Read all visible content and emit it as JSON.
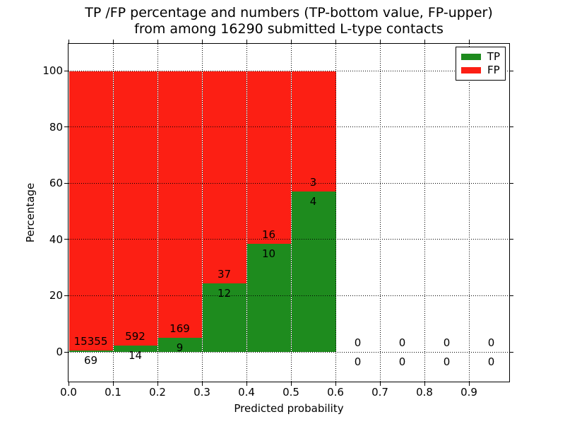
{
  "title": {
    "line1": "TP /FP percentage and numbers (TP-bottom value, FP-upper)",
    "line2": "from among 16290 submitted L-type contacts"
  },
  "axes": {
    "xlabel": "Predicted probability",
    "ylabel": "Percentage",
    "xtick_labels": [
      "0.0",
      "0.1",
      "0.2",
      "0.3",
      "0.4",
      "0.5",
      "0.6",
      "0.7",
      "0.8",
      "0.9"
    ],
    "ytick_labels": [
      "0",
      "20",
      "40",
      "60",
      "80",
      "100"
    ]
  },
  "legend": {
    "items": [
      {
        "label": "TP",
        "color": "#1e8b1e"
      },
      {
        "label": "FP",
        "color": "#fc1f14"
      }
    ]
  },
  "colors": {
    "tp": "#1e8b1e",
    "fp": "#fc1f14",
    "grid": "#000000",
    "frame": "#000000",
    "bar_edge": "#ffffff",
    "background": "#ffffff",
    "text": "#000000"
  },
  "chart_data": {
    "type": "bar",
    "stacked": true,
    "title": "TP /FP percentage and numbers (TP-bottom value, FP-upper) from among 16290 submitted L-type contacts",
    "xlabel": "Predicted probability",
    "ylabel": "Percentage",
    "total_submitted": 16290,
    "x_bins": {
      "starts": [
        0.0,
        0.1,
        0.2,
        0.3,
        0.4,
        0.5,
        0.6,
        0.7,
        0.8,
        0.9
      ],
      "width": 0.1
    },
    "series": [
      {
        "name": "TP",
        "color": "#1e8b1e",
        "counts": [
          69,
          14,
          9,
          12,
          10,
          4,
          0,
          0,
          0,
          0
        ]
      },
      {
        "name": "FP",
        "color": "#fc1f14",
        "counts": [
          15355,
          592,
          169,
          37,
          16,
          3,
          0,
          0,
          0,
          0
        ]
      }
    ],
    "bar_total_percent": 100,
    "tp_percent": [
      0.45,
      2.31,
      5.06,
      24.49,
      38.46,
      57.14,
      0,
      0,
      0,
      0
    ],
    "xticks": [
      0.0,
      0.1,
      0.2,
      0.3,
      0.4,
      0.5,
      0.6,
      0.7,
      0.8,
      0.9
    ],
    "yticks": [
      0,
      20,
      40,
      60,
      80,
      100
    ],
    "xlim": [
      0.0,
      0.99
    ],
    "ylim": [
      -10.6,
      109.5
    ],
    "grid": true,
    "grid_style": "dotted",
    "legend_position": "upper right"
  }
}
